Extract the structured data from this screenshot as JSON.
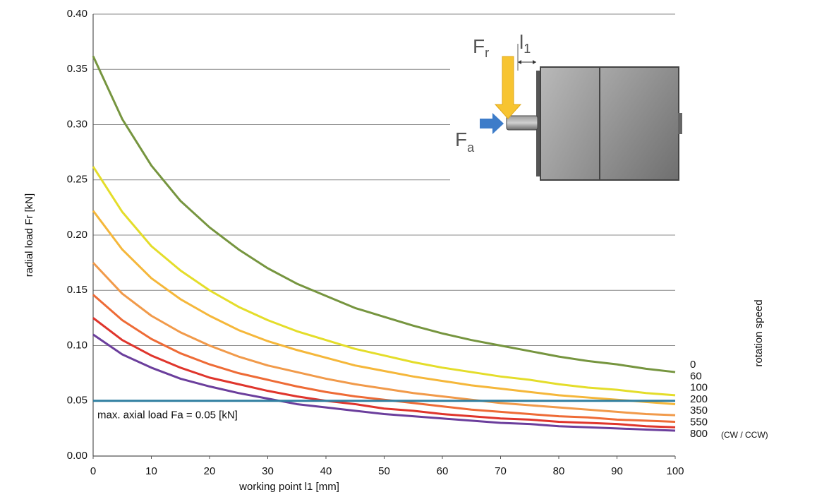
{
  "chart_data": {
    "type": "line",
    "x_label": "working point l1 [mm]",
    "y_label": "radial load Fr [kN]",
    "legend_title": "rotation speed",
    "legend_note": "(CW / CCW)",
    "legend_position": "right",
    "grid": true,
    "xlim": [
      0,
      100
    ],
    "ylim": [
      0,
      0.4
    ],
    "xticks": [
      0,
      10,
      20,
      30,
      40,
      50,
      60,
      70,
      80,
      90,
      100
    ],
    "yticks": [
      {
        "value": 0,
        "label": "0.00"
      },
      {
        "value": 0.05,
        "label": "0.05"
      },
      {
        "value": 0.1,
        "label": "0.10"
      },
      {
        "value": 0.15,
        "label": "0.15"
      },
      {
        "value": 0.2,
        "label": "0.20"
      },
      {
        "value": 0.25,
        "label": "0.25"
      },
      {
        "value": 0.3,
        "label": "0.30"
      },
      {
        "value": 0.35,
        "label": "0.35"
      },
      {
        "value": 0.4,
        "label": "0.40"
      }
    ],
    "x": [
      0,
      5,
      10,
      15,
      20,
      25,
      30,
      35,
      40,
      45,
      50,
      55,
      60,
      65,
      70,
      75,
      80,
      85,
      90,
      95,
      100
    ],
    "series": [
      {
        "name": "0",
        "color": "#76953f",
        "values": [
          0.362,
          0.305,
          0.263,
          0.231,
          0.207,
          0.187,
          0.17,
          0.156,
          0.145,
          0.134,
          0.126,
          0.118,
          0.111,
          0.105,
          0.1,
          0.095,
          0.09,
          0.086,
          0.083,
          0.079,
          0.076
        ]
      },
      {
        "name": "60",
        "color": "#e4dd2a",
        "values": [
          0.262,
          0.221,
          0.19,
          0.168,
          0.15,
          0.135,
          0.123,
          0.113,
          0.105,
          0.097,
          0.091,
          0.085,
          0.08,
          0.076,
          0.072,
          0.069,
          0.065,
          0.062,
          0.06,
          0.057,
          0.055
        ]
      },
      {
        "name": "100",
        "color": "#f5b73a",
        "values": [
          0.222,
          0.187,
          0.161,
          0.142,
          0.127,
          0.114,
          0.104,
          0.096,
          0.089,
          0.082,
          0.077,
          0.072,
          0.068,
          0.064,
          0.061,
          0.058,
          0.055,
          0.053,
          0.051,
          0.049,
          0.047
        ]
      },
      {
        "name": "200",
        "color": "#f19a4a",
        "values": [
          0.175,
          0.147,
          0.127,
          0.112,
          0.1,
          0.09,
          0.082,
          0.076,
          0.07,
          0.065,
          0.061,
          0.057,
          0.054,
          0.051,
          0.048,
          0.046,
          0.044,
          0.042,
          0.04,
          0.038,
          0.037
        ]
      },
      {
        "name": "350",
        "color": "#ee6b36",
        "values": [
          0.146,
          0.123,
          0.106,
          0.093,
          0.083,
          0.075,
          0.069,
          0.063,
          0.058,
          0.054,
          0.051,
          0.048,
          0.045,
          0.042,
          0.04,
          0.038,
          0.036,
          0.035,
          0.033,
          0.032,
          0.031
        ]
      },
      {
        "name": "550",
        "color": "#df352c",
        "values": [
          0.125,
          0.105,
          0.091,
          0.08,
          0.071,
          0.065,
          0.059,
          0.054,
          0.05,
          0.047,
          0.043,
          0.041,
          0.038,
          0.036,
          0.034,
          0.033,
          0.031,
          0.03,
          0.029,
          0.027,
          0.026
        ]
      },
      {
        "name": "800",
        "color": "#6b3e9c",
        "values": [
          0.11,
          0.092,
          0.08,
          0.07,
          0.063,
          0.057,
          0.052,
          0.047,
          0.044,
          0.041,
          0.038,
          0.036,
          0.034,
          0.032,
          0.03,
          0.029,
          0.027,
          0.026,
          0.025,
          0.024,
          0.023
        ]
      }
    ],
    "reference_line": {
      "value": 0.05,
      "label": "max. axial load Fa = 0.05 [kN]",
      "color": "#2f7fa0"
    },
    "inset": {
      "radial_force": {
        "main": "F",
        "sub": "r"
      },
      "distance": {
        "main": "l",
        "sub": "1"
      },
      "axial_force": {
        "main": "F",
        "sub": "a"
      }
    }
  }
}
